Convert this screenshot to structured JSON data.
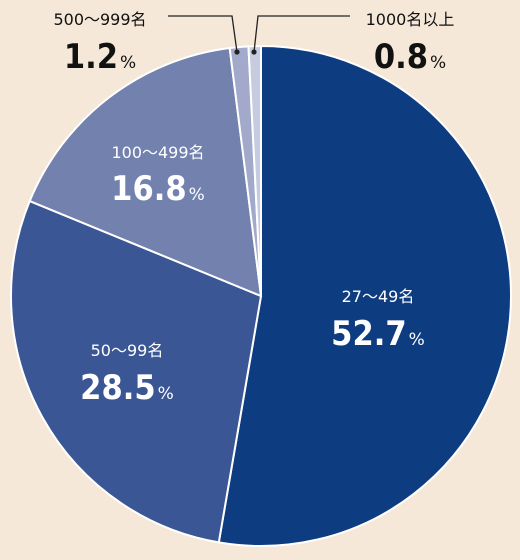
{
  "chart_data": {
    "type": "pie",
    "title": "",
    "slices": [
      {
        "label": "27〜49名",
        "value": 52.7,
        "display": "52.7",
        "color": "#0d3d80"
      },
      {
        "label": "50〜99名",
        "value": 28.5,
        "display": "28.5",
        "color": "#3b5694"
      },
      {
        "label": "100〜499名",
        "value": 16.8,
        "display": "16.8",
        "color": "#7281ad"
      },
      {
        "label": "500〜999名",
        "value": 1.2,
        "display": "1.2",
        "color": "#a3a9ca"
      },
      {
        "label": "1000名以上",
        "value": 0.8,
        "display": "0.8",
        "color": "#c7cbe0"
      }
    ],
    "unit": "%",
    "start": "12 o'clock",
    "direction": "clockwise",
    "legend": "none (labels inside slices, callouts for small slices)"
  },
  "colors": {
    "background": "#f5e8d8",
    "label_inside": "#ffffff",
    "label_outside": "#111111",
    "separator": "#ffffff"
  }
}
